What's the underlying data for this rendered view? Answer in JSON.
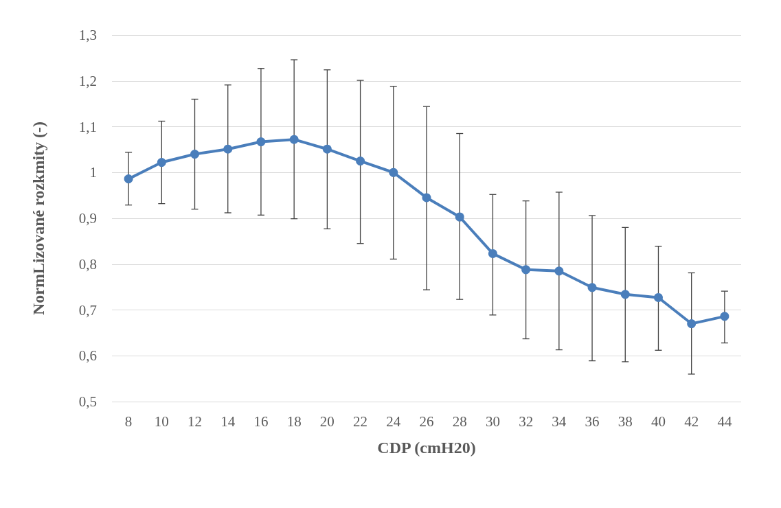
{
  "chart_data": {
    "type": "line",
    "xlabel": "CDP (cmH20)",
    "ylabel": "NormLizované rozkmity (-)",
    "categories": [
      "8",
      "10",
      "12",
      "14",
      "16",
      "18",
      "20",
      "22",
      "24",
      "26",
      "28",
      "30",
      "32",
      "34",
      "36",
      "38",
      "40",
      "42",
      "44"
    ],
    "series": [
      {
        "color": "#4a7ebb",
        "values": [
          0.986,
          1.022,
          1.04,
          1.051,
          1.067,
          1.072,
          1.051,
          1.025,
          1.0,
          0.945,
          0.903,
          0.823,
          0.788,
          0.785,
          0.749,
          0.734,
          0.727,
          0.67,
          0.686
        ],
        "errors": [
          [
            0.929,
            1.044
          ],
          [
            0.932,
            1.112
          ],
          [
            0.92,
            1.16
          ],
          [
            0.912,
            1.191
          ],
          [
            0.907,
            1.227
          ],
          [
            0.899,
            1.246
          ],
          [
            0.877,
            1.224
          ],
          [
            0.845,
            1.201
          ],
          [
            0.811,
            1.188
          ],
          [
            0.744,
            1.144
          ],
          [
            0.723,
            1.085
          ],
          [
            0.689,
            0.952
          ],
          [
            0.637,
            0.938
          ],
          [
            0.613,
            0.957
          ],
          [
            0.589,
            0.906
          ],
          [
            0.587,
            0.88
          ],
          [
            0.612,
            0.839
          ],
          [
            0.56,
            0.781
          ],
          [
            0.628,
            0.741
          ]
        ]
      }
    ],
    "ylim": [
      0.5,
      1.3
    ],
    "yticks": [
      {
        "value": 0.5,
        "label": "0,5"
      },
      {
        "value": 0.6,
        "label": "0,6"
      },
      {
        "value": 0.7,
        "label": "0,7"
      },
      {
        "value": 0.8,
        "label": "0,8"
      },
      {
        "value": 0.9,
        "label": "0,9"
      },
      1,
      {
        "value": 1.1,
        "label": "1,1"
      },
      {
        "value": 1.2,
        "label": "1,2"
      },
      {
        "value": 1.3,
        "label": "1,3"
      }
    ],
    "grid": "y",
    "marker": "circle",
    "line_style": "solid"
  }
}
